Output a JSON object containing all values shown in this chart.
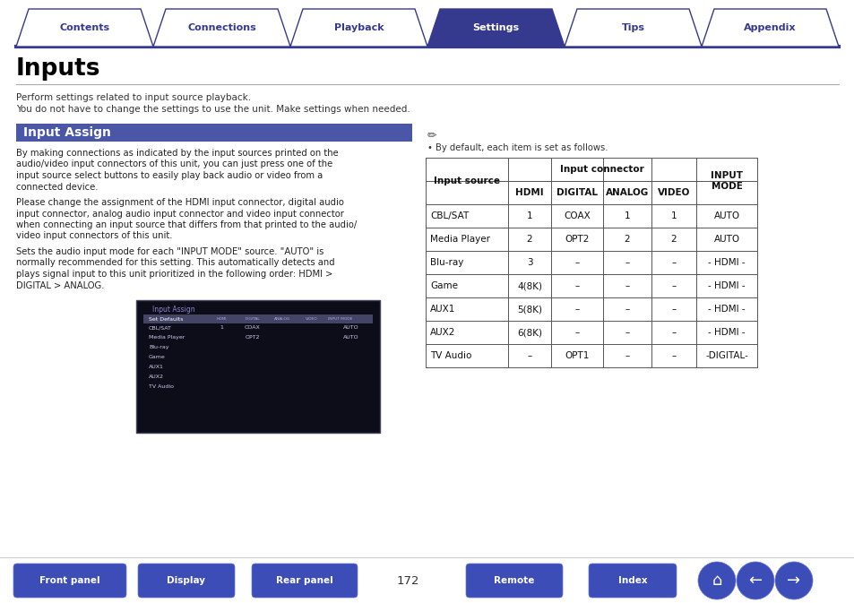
{
  "nav_tabs": [
    "Contents",
    "Connections",
    "Playback",
    "Settings",
    "Tips",
    "Appendix"
  ],
  "active_tab": "Settings",
  "active_tab_color": "#353a8f",
  "inactive_tab_color": "#ffffff",
  "inactive_tab_text_color": "#353a8f",
  "active_tab_text_color": "#ffffff",
  "tab_border_color": "#353a8f",
  "nav_line_color": "#353a8f",
  "page_title": "Inputs",
  "page_bg": "#ffffff",
  "section_title": "Input Assign",
  "section_title_bg": "#4a56a6",
  "section_title_color": "#ffffff",
  "body_text_line1": "Perform settings related to input source playback.",
  "body_text_line2": "You do not have to change the settings to use the unit. Make settings when needed.",
  "body_para1_lines": [
    "By making connections as indicated by the input sources printed on the",
    "audio/video input connectors of this unit, you can just press one of the",
    "input source select buttons to easily play back audio or video from a",
    "connected device."
  ],
  "body_para2_lines": [
    "Please change the assignment of the HDMI input connector, digital audio",
    "input connector, analog audio input connector and video input connector",
    "when connecting an input source that differs from that printed to the audio/",
    "video input connectors of this unit."
  ],
  "body_para3_lines": [
    "Sets the audio input mode for each \"INPUT MODE\" source. \"AUTO\" is",
    "normally recommended for this setting. This automatically detects and",
    "plays signal input to this unit prioritized in the following order: HDMI >",
    "DIGITAL > ANALOG."
  ],
  "note_text": "By default, each item is set as follows.",
  "table_data": [
    [
      "CBL/SAT",
      "1",
      "COAX",
      "1",
      "1",
      "AUTO"
    ],
    [
      "Media Player",
      "2",
      "OPT2",
      "2",
      "2",
      "AUTO"
    ],
    [
      "Blu-ray",
      "3",
      "–",
      "–",
      "–",
      "- HDMI -"
    ],
    [
      "Game",
      "4(8K)",
      "–",
      "–",
      "–",
      "- HDMI -"
    ],
    [
      "AUX1",
      "5(8K)",
      "–",
      "–",
      "–",
      "- HDMI -"
    ],
    [
      "AUX2",
      "6(8K)",
      "–",
      "–",
      "–",
      "- HDMI -"
    ],
    [
      "TV Audio",
      "–",
      "OPT1",
      "–",
      "–",
      "-DIGITAL-"
    ]
  ],
  "bottom_buttons": [
    "Front panel",
    "Display",
    "Rear panel",
    "Remote",
    "Index"
  ],
  "page_number": "172",
  "button_color": "#3d4db7",
  "button_text_color": "#ffffff",
  "screen_rows": [
    "CBL/SAT",
    "Media Player",
    "Blu-ray",
    "Game",
    "AUX1",
    "AUX2",
    "TV Audio"
  ]
}
